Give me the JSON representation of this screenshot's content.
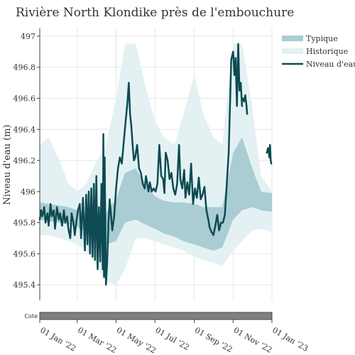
{
  "chart_data": {
    "type": "line",
    "title": "Rivière North Klondike près de l'embouchure",
    "xlabel": "",
    "ylabel": "Niveau d'eau (m)",
    "xlim": [
      "2022-01-01",
      "2023-01-01"
    ],
    "ylim": [
      495.3,
      497.05
    ],
    "yticks": [
      497,
      496.8,
      496.6,
      496.4,
      496.2,
      496,
      495.8,
      495.6,
      495.4
    ],
    "ytick_labels": [
      "497",
      "496.8",
      "496.6",
      "496.4",
      "496.2",
      "496",
      "495.8",
      "495.6",
      "495.4"
    ],
    "xticks": [
      "2022-01-01",
      "2022-03-01",
      "2022-05-01",
      "2022-07-01",
      "2022-09-01",
      "2022-11-01",
      "2023-01-01"
    ],
    "xtick_labels": [
      "01 Jan '22",
      "01 Mar '22",
      "01 May '22",
      "01 Jul '22",
      "01 Sep '22",
      "01 Nov '22",
      "01 Jan '23"
    ],
    "grid": true,
    "legend_position": "top-right",
    "range_strip_label": "Cote",
    "colors": {
      "typique": "#a9cdd3",
      "historique": "#e3f1f3",
      "niveau": "#0e4a52",
      "strip": "#808080",
      "grid": "#e6e6e6"
    },
    "series": [
      {
        "name": "Historique",
        "kind": "band",
        "x": [
          "2022-01-01",
          "2022-01-15",
          "2022-02-01",
          "2022-02-15",
          "2022-03-01",
          "2022-03-15",
          "2022-04-01",
          "2022-04-15",
          "2022-05-01",
          "2022-05-15",
          "2022-06-01",
          "2022-06-15",
          "2022-07-01",
          "2022-07-15",
          "2022-08-01",
          "2022-08-15",
          "2022-09-01",
          "2022-09-15",
          "2022-10-01",
          "2022-10-15",
          "2022-11-01",
          "2022-11-15",
          "2022-12-01",
          "2022-12-15",
          "2023-01-01"
        ],
        "upper": [
          496.3,
          496.35,
          496.2,
          496.05,
          496.0,
          496.05,
          496.2,
          496.3,
          496.6,
          496.95,
          496.95,
          496.7,
          496.45,
          496.35,
          496.3,
          496.5,
          496.75,
          496.5,
          496.35,
          496.3,
          496.95,
          496.95,
          496.55,
          496.1,
          496.0
        ],
        "lower": [
          495.72,
          495.72,
          495.7,
          495.68,
          495.66,
          495.62,
          495.52,
          495.42,
          495.4,
          495.5,
          495.7,
          495.7,
          495.68,
          495.66,
          495.64,
          495.62,
          495.58,
          495.56,
          495.54,
          495.52,
          495.62,
          495.68,
          495.75,
          495.76,
          495.74
        ]
      },
      {
        "name": "Typique",
        "kind": "band",
        "x": [
          "2022-01-01",
          "2022-01-15",
          "2022-02-01",
          "2022-02-15",
          "2022-03-01",
          "2022-03-15",
          "2022-04-01",
          "2022-04-15",
          "2022-05-01",
          "2022-05-15",
          "2022-06-01",
          "2022-06-15",
          "2022-07-01",
          "2022-07-15",
          "2022-08-01",
          "2022-08-15",
          "2022-09-01",
          "2022-09-15",
          "2022-10-01",
          "2022-10-15",
          "2022-11-01",
          "2022-11-15",
          "2022-12-01",
          "2022-12-15",
          "2023-01-01"
        ],
        "upper": [
          495.93,
          495.92,
          495.91,
          495.9,
          495.88,
          495.86,
          495.85,
          495.86,
          495.95,
          496.12,
          496.15,
          496.05,
          495.97,
          495.94,
          495.93,
          495.93,
          495.92,
          495.9,
          495.9,
          495.9,
          496.25,
          496.35,
          496.15,
          496.0,
          495.99
        ],
        "lower": [
          495.82,
          495.81,
          495.8,
          495.79,
          495.77,
          495.74,
          495.7,
          495.66,
          495.68,
          495.8,
          495.82,
          495.79,
          495.76,
          495.73,
          495.71,
          495.68,
          495.66,
          495.64,
          495.62,
          495.64,
          495.82,
          495.88,
          495.9,
          495.88,
          495.87
        ]
      },
      {
        "name": "Niveau d'eau",
        "kind": "line",
        "segments": [
          {
            "x": [
              "2022-01-01",
              "2022-01-03",
              "2022-01-05",
              "2022-01-08",
              "2022-01-10",
              "2022-01-13",
              "2022-01-15",
              "2022-01-18",
              "2022-01-20",
              "2022-01-23",
              "2022-01-25",
              "2022-01-28",
              "2022-01-31",
              "2022-02-02",
              "2022-02-05",
              "2022-02-08",
              "2022-02-10",
              "2022-02-13",
              "2022-02-15",
              "2022-02-18",
              "2022-02-20",
              "2022-02-23",
              "2022-02-25",
              "2022-02-28",
              "2022-03-02",
              "2022-03-05",
              "2022-03-07",
              "2022-03-10",
              "2022-03-13",
              "2022-03-15",
              "2022-03-17",
              "2022-03-19",
              "2022-03-21",
              "2022-03-23",
              "2022-03-25",
              "2022-03-27",
              "2022-03-29",
              "2022-03-31",
              "2022-04-02",
              "2022-04-04",
              "2022-04-06",
              "2022-04-08",
              "2022-04-10",
              "2022-04-11",
              "2022-04-12",
              "2022-04-13",
              "2022-04-15",
              "2022-04-17",
              "2022-04-19",
              "2022-04-21",
              "2022-04-23",
              "2022-04-25",
              "2022-04-28",
              "2022-05-01",
              "2022-05-04",
              "2022-05-07",
              "2022-05-10",
              "2022-05-13",
              "2022-05-16",
              "2022-05-19",
              "2022-05-21",
              "2022-05-23",
              "2022-05-25",
              "2022-05-27",
              "2022-05-29",
              "2022-05-31",
              "2022-06-03",
              "2022-06-06",
              "2022-06-09",
              "2022-06-12",
              "2022-06-15",
              "2022-06-17",
              "2022-06-19",
              "2022-06-21",
              "2022-06-23",
              "2022-06-26",
              "2022-06-29",
              "2022-07-02",
              "2022-07-05",
              "2022-07-08",
              "2022-07-11",
              "2022-07-14",
              "2022-07-16",
              "2022-07-18",
              "2022-07-21",
              "2022-07-24",
              "2022-07-27",
              "2022-07-30",
              "2022-08-02",
              "2022-08-05",
              "2022-08-08",
              "2022-08-10",
              "2022-08-13",
              "2022-08-16",
              "2022-08-18",
              "2022-08-21",
              "2022-08-24",
              "2022-08-27",
              "2022-08-30",
              "2022-09-02",
              "2022-09-05",
              "2022-09-08",
              "2022-09-11",
              "2022-09-14",
              "2022-09-17",
              "2022-09-20",
              "2022-09-23",
              "2022-09-25",
              "2022-09-28",
              "2022-10-01",
              "2022-10-04",
              "2022-10-07",
              "2022-10-10",
              "2022-10-13",
              "2022-10-16",
              "2022-10-19",
              "2022-10-22",
              "2022-10-25",
              "2022-10-27",
              "2022-10-29",
              "2022-11-01",
              "2022-11-03",
              "2022-11-05",
              "2022-11-07",
              "2022-11-09",
              "2022-11-11",
              "2022-11-13",
              "2022-11-15"
            ],
            "y": [
              495.82,
              495.88,
              495.84,
              495.9,
              495.8,
              495.86,
              495.78,
              495.92,
              495.84,
              495.88,
              495.76,
              495.9,
              495.82,
              495.86,
              495.78,
              495.88,
              495.8,
              495.84,
              495.76,
              495.7,
              495.86,
              495.8,
              495.72,
              495.82,
              495.88,
              495.92,
              495.7,
              495.96,
              495.62,
              495.98,
              495.66,
              496.0,
              495.6,
              496.02,
              495.58,
              496.05,
              495.56,
              496.1,
              495.5,
              495.9,
              495.55,
              496.05,
              495.5,
              496.37,
              495.45,
              496.22,
              495.4,
              495.55,
              495.8,
              495.95,
              495.85,
              495.75,
              495.84,
              496.02,
              496.15,
              496.22,
              496.18,
              496.32,
              496.45,
              496.58,
              496.7,
              496.5,
              496.42,
              496.3,
              496.2,
              496.22,
              496.3,
              496.15,
              496.12,
              496.05,
              496.02,
              496.1,
              496.05,
              496.0,
              496.06,
              496.0,
              496.02,
              496.0,
              496.05,
              496.3,
              496.1,
              496.08,
              495.99,
              496.25,
              496.2,
              496.08,
              496.12,
              496.02,
              495.98,
              496.05,
              496.3,
              496.08,
              496.02,
              496.14,
              495.96,
              496.06,
              495.98,
              496.18,
              495.92,
              496.02,
              495.96,
              496.09,
              495.95,
              495.98,
              496.03,
              495.88,
              495.82,
              495.77,
              495.74,
              495.72,
              495.78,
              495.85,
              495.75,
              495.8,
              495.8,
              495.85,
              496.05,
              496.25,
              496.55,
              496.85,
              496.9,
              496.75,
              496.86,
              496.55,
              496.95,
              496.65,
              496.7,
              496.55
            ]
          },
          {
            "x": [
              "2022-11-16",
              "2022-11-18",
              "2022-11-20",
              "2022-11-22",
              "2022-11-23"
            ],
            "y": [
              496.6,
              496.58,
              496.62,
              496.55,
              496.5
            ]
          },
          {
            "x": [
              "2022-12-24",
              "2022-12-26",
              "2022-12-28",
              "2022-12-29",
              "2022-12-30",
              "2022-12-31"
            ],
            "y": [
              496.25,
              496.28,
              496.22,
              496.3,
              496.2,
              496.18
            ]
          }
        ]
      }
    ]
  }
}
